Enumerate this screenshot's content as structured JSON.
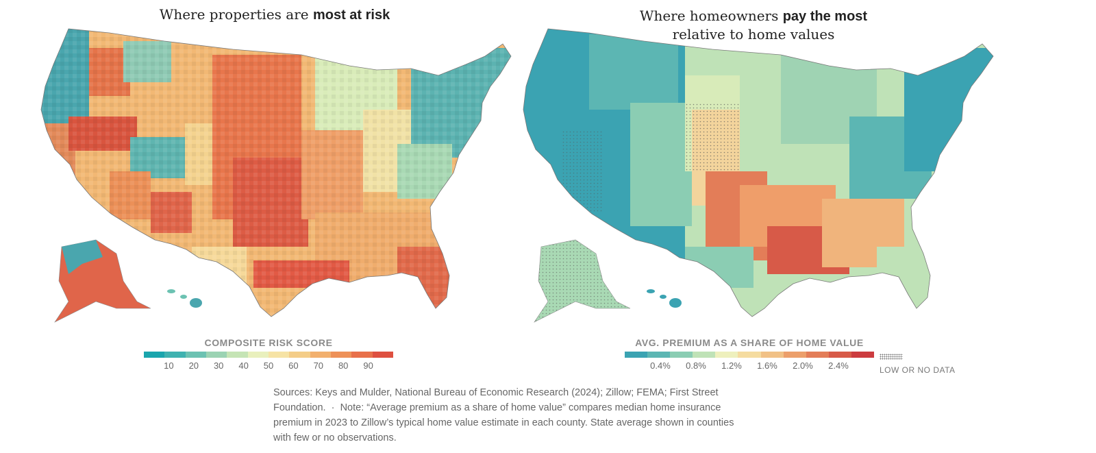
{
  "left_map": {
    "title_prefix": "Where properties are ",
    "title_bold": "most at risk",
    "legend_title": "COMPOSITE RISK SCORE",
    "legend_colors": [
      "#1aa5ad",
      "#3fb2b0",
      "#6cc2b2",
      "#9bd3b3",
      "#c5e4b5",
      "#e9f0bd",
      "#f6e3a5",
      "#f4cd88",
      "#f2b06e",
      "#ee9158",
      "#e8704a",
      "#de5040"
    ],
    "legend_ticks": [
      "10",
      "20",
      "30",
      "40",
      "50",
      "60",
      "70",
      "80",
      "90"
    ]
  },
  "right_map": {
    "title_line1_prefix": "Where homeowners ",
    "title_line1_bold": "pay the most",
    "title_line2": "relative to home values",
    "legend_title": "AVG. PREMIUM AS A SHARE OF HOME VALUE",
    "legend_colors": [
      "#3ba3b2",
      "#5cb6b3",
      "#8bcdb3",
      "#bfe2b7",
      "#eef0bd",
      "#f5dca0",
      "#f1c186",
      "#ec9f6b",
      "#e37d58",
      "#d75a48",
      "#cc3c3f"
    ],
    "legend_ticks": [
      "0.4%",
      "0.8%",
      "1.2%",
      "1.6%",
      "2.0%",
      "2.4%"
    ],
    "no_data_label": "LOW OR NO DATA"
  },
  "source_note": {
    "line1": "Sources: Keys and Mulder, National Bureau of Economic Research (2024); Zillow; FEMA; First Street",
    "line2_a": "Foundation.",
    "separator": "·",
    "line2_b": "Note: “Average premium as a share of home value” compares median home insurance",
    "line3": "premium in 2023 to Zillow’s typical home value estimate in each county. State average shown in counties",
    "line4": "with few or no observations."
  }
}
